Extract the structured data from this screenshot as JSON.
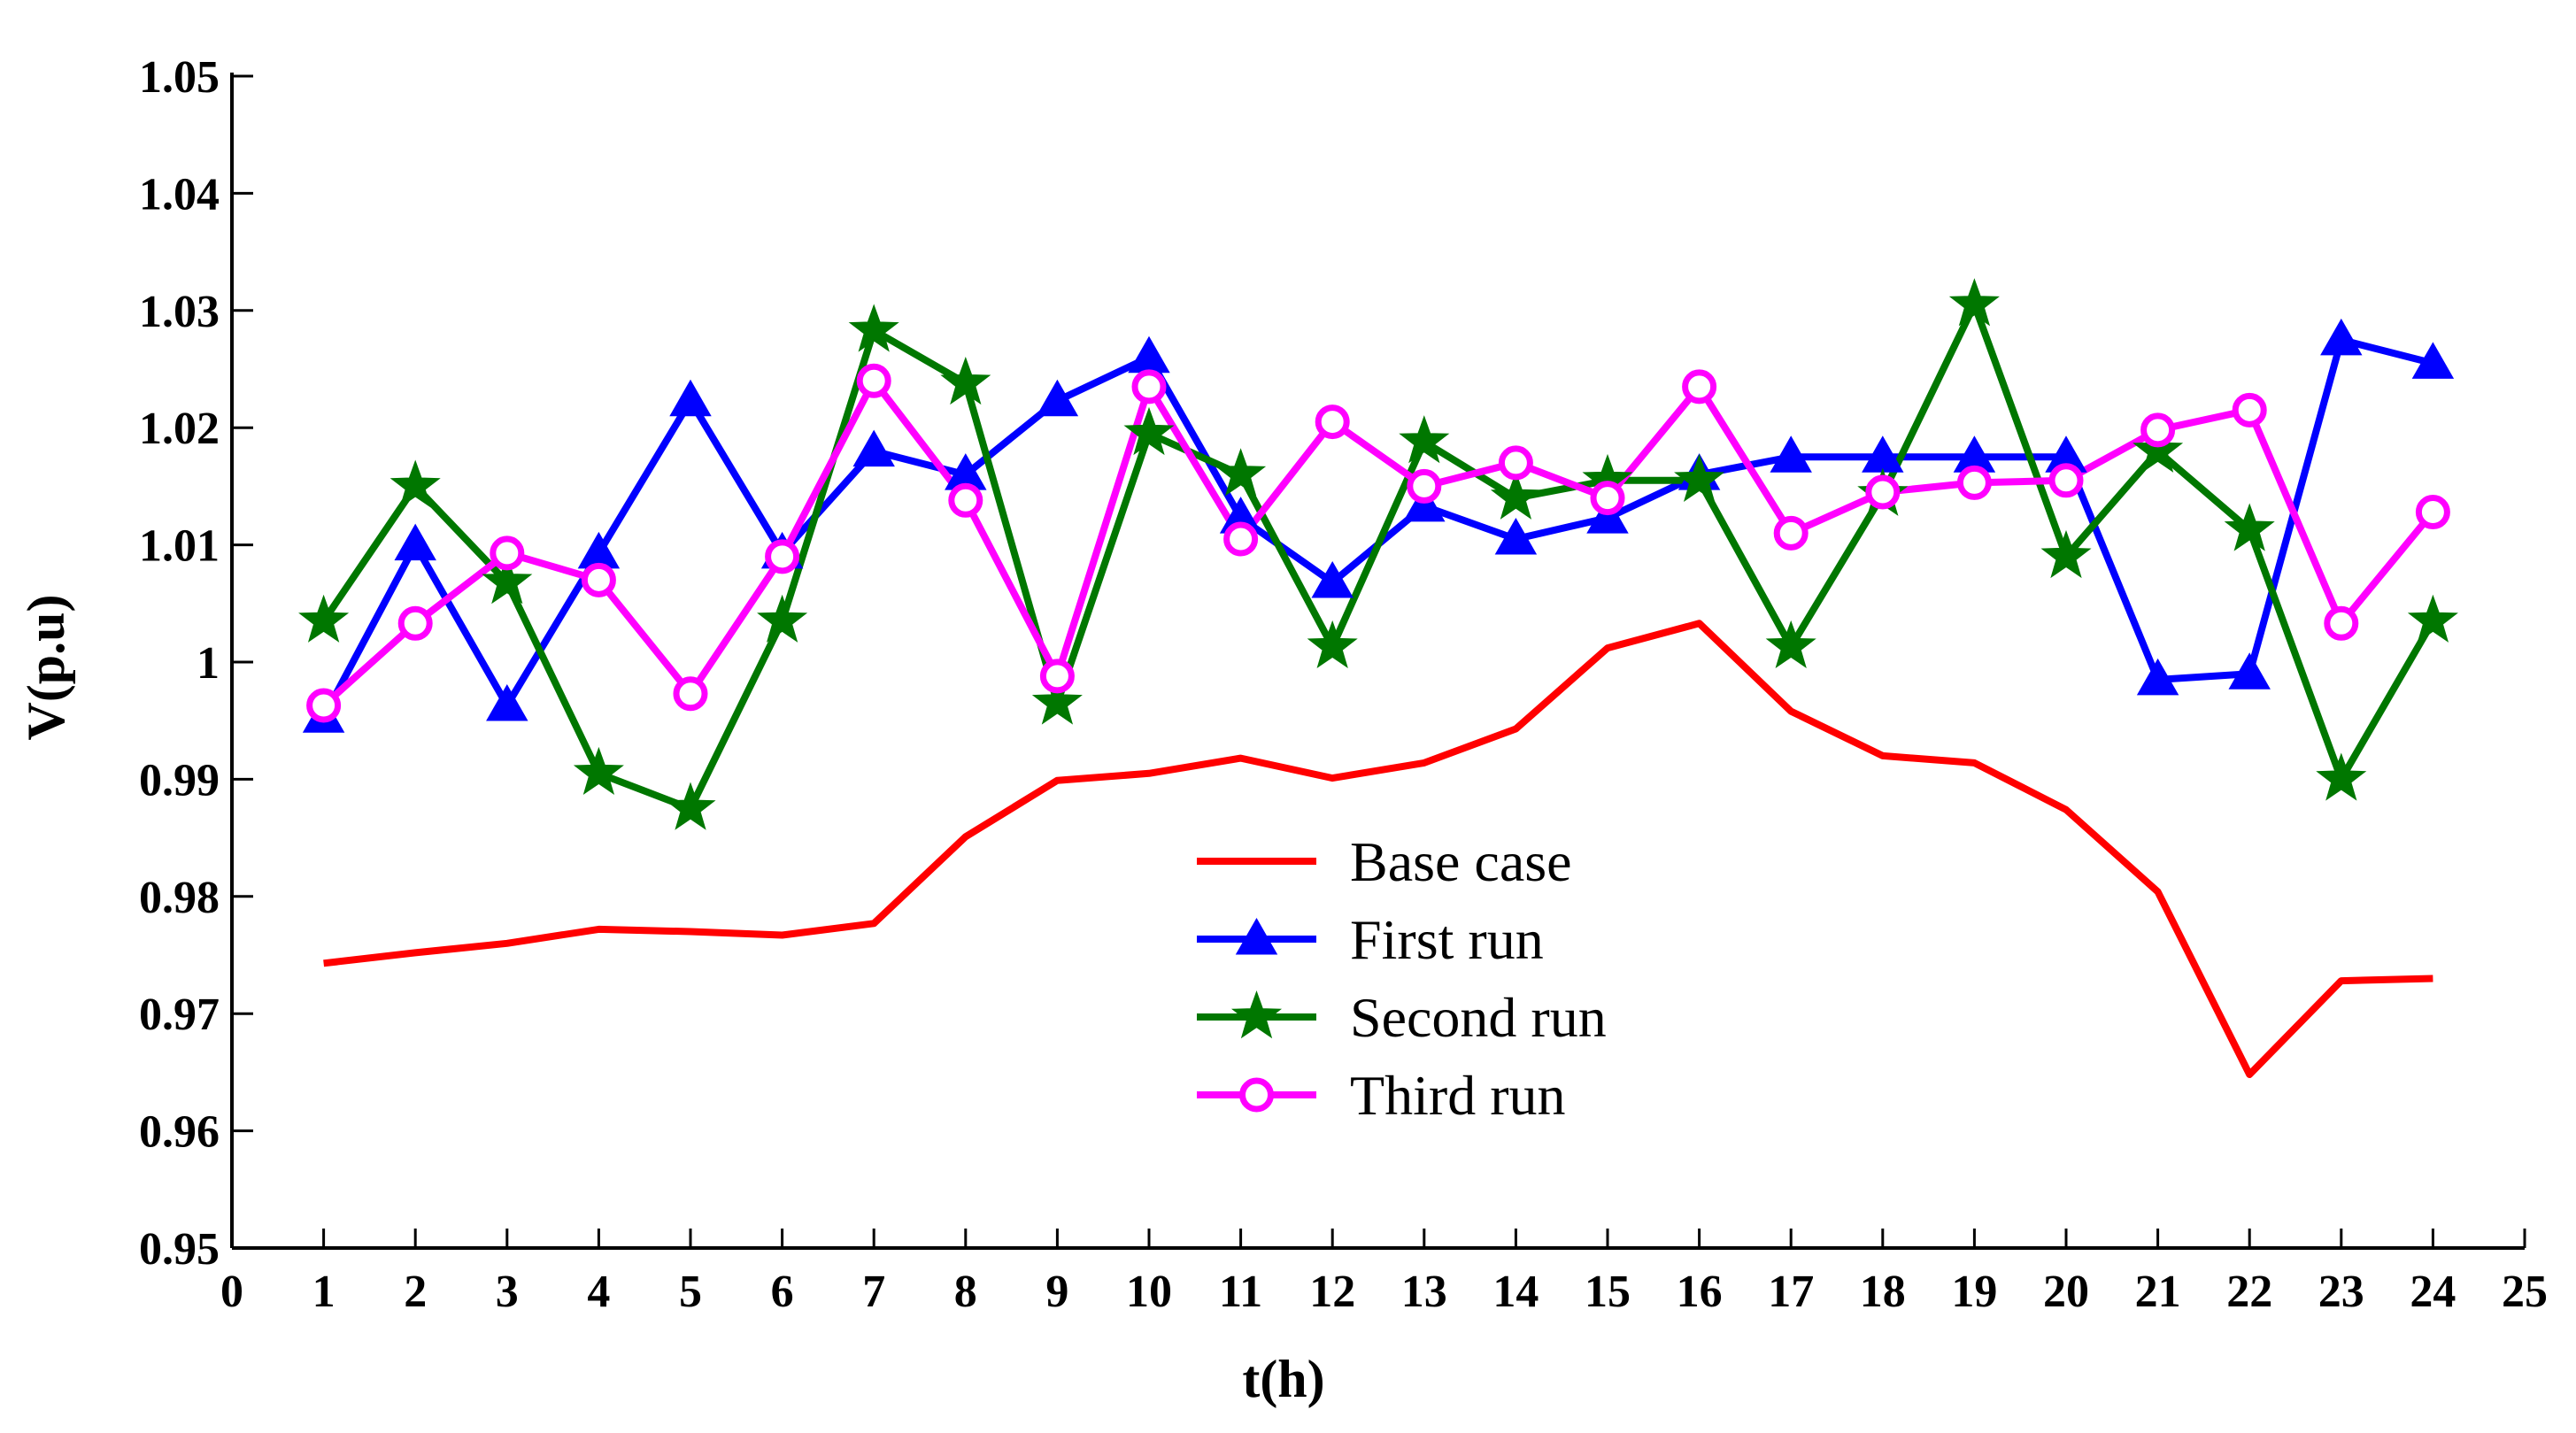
{
  "chart_data": {
    "type": "line",
    "title": "",
    "xlabel": "t(h)",
    "ylabel": "V(p.u)",
    "xlim": [
      0,
      25
    ],
    "ylim": [
      0.95,
      1.05
    ],
    "x_ticks": [
      "0",
      "1",
      "2",
      "3",
      "4",
      "5",
      "6",
      "7",
      "8",
      "9",
      "10",
      "11",
      "12",
      "13",
      "14",
      "15",
      "16",
      "17",
      "18",
      "19",
      "20",
      "21",
      "22",
      "23",
      "24",
      "25"
    ],
    "y_ticks": [
      "0.95",
      "0.96",
      "0.97",
      "0.98",
      "0.99",
      "1",
      "1.01",
      "1.02",
      "1.03",
      "1.04",
      "1.05"
    ],
    "grid": false,
    "legend_position": "center",
    "x": [
      1,
      2,
      3,
      4,
      5,
      6,
      7,
      8,
      9,
      10,
      11,
      12,
      13,
      14,
      15,
      16,
      17,
      18,
      19,
      20,
      21,
      22,
      23,
      24
    ],
    "series": [
      {
        "name": "Base case",
        "color": "#ff0000",
        "marker": "none",
        "values": [
          0.9743,
          0.9752,
          0.976,
          0.9772,
          0.977,
          0.9767,
          0.9777,
          0.9851,
          0.9899,
          0.9905,
          0.9918,
          0.9901,
          0.9914,
          0.9943,
          1.0012,
          1.0033,
          0.9958,
          0.992,
          0.9914,
          0.9874,
          0.9804,
          0.9648,
          0.9728,
          0.973
        ]
      },
      {
        "name": "First run",
        "color": "#0000ff",
        "marker": "triangle",
        "values": [
          0.9953,
          1.01,
          0.9963,
          1.0093,
          1.0223,
          1.0093,
          1.018,
          1.016,
          1.0223,
          1.026,
          1.0123,
          1.0068,
          1.0133,
          1.0105,
          1.0123,
          1.016,
          1.0175,
          1.0175,
          1.0175,
          1.0175,
          0.9985,
          0.999,
          1.0275,
          1.0255
        ]
      },
      {
        "name": "Second run",
        "color": "#007700",
        "marker": "star",
        "values": [
          1.0035,
          1.015,
          1.0068,
          0.9905,
          0.9875,
          1.0035,
          1.0283,
          1.0238,
          0.9965,
          1.0195,
          1.016,
          1.0013,
          1.0188,
          1.014,
          1.0155,
          1.0155,
          1.0013,
          1.0143,
          1.0305,
          1.009,
          1.018,
          1.0113,
          0.99,
          1.0035
        ]
      },
      {
        "name": "Third run",
        "color": "#ff00ff",
        "marker": "circle",
        "values": [
          0.9963,
          1.0033,
          1.0093,
          1.007,
          0.9973,
          1.009,
          1.024,
          1.0138,
          0.9988,
          1.0235,
          1.0105,
          1.0205,
          1.015,
          1.017,
          1.014,
          1.0235,
          1.011,
          1.0145,
          1.0153,
          1.0155,
          1.0198,
          1.0215,
          1.0033,
          1.0128
        ]
      }
    ]
  }
}
